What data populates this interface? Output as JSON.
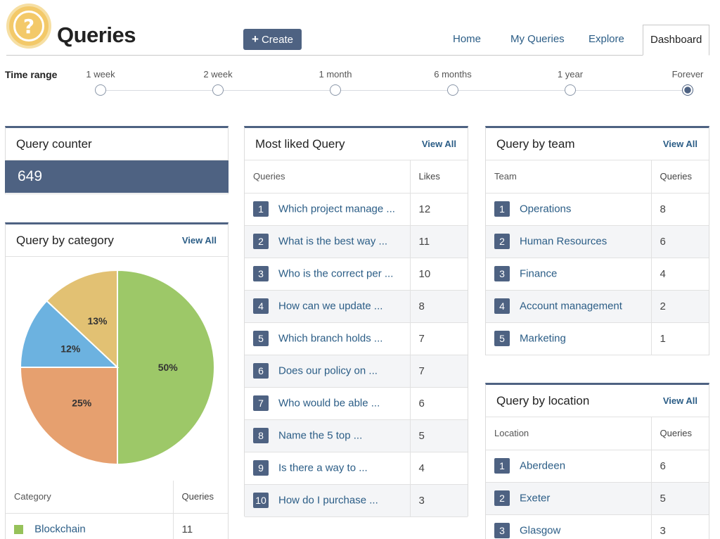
{
  "app": {
    "title": "Queries",
    "logo_icon": "question-mark-icon"
  },
  "toolbar": {
    "create_label": "Create"
  },
  "nav": {
    "tabs": [
      "Home",
      "My Queries",
      "Explore",
      "Dashboard"
    ],
    "active": "Dashboard"
  },
  "time_range": {
    "label": "Time range",
    "options": [
      "1 week",
      "2 week",
      "1 month",
      "6 months",
      "1 year",
      "Forever"
    ],
    "selected": "Forever"
  },
  "query_counter": {
    "title": "Query counter",
    "value": "649"
  },
  "category": {
    "title": "Query by category",
    "view_all": "View All",
    "columns": [
      "Category",
      "Queries"
    ],
    "rows": [
      {
        "name": "Blockchain",
        "queries": "11",
        "color": "#96c25a"
      }
    ]
  },
  "chart_data": {
    "type": "pie",
    "values": [
      50,
      25,
      12,
      13
    ],
    "labels": [
      "50%",
      "25%",
      "12%",
      "13%"
    ],
    "colors": [
      "#9dc868",
      "#e6a06f",
      "#6cb2e0",
      "#e2c173"
    ]
  },
  "liked": {
    "title": "Most liked Query",
    "view_all": "View All",
    "columns": [
      "Queries",
      "Likes"
    ],
    "rows": [
      {
        "rank": "1",
        "text": "Which project manage ...",
        "likes": "12"
      },
      {
        "rank": "2",
        "text": "What is the best way ...",
        "likes": "11"
      },
      {
        "rank": "3",
        "text": "Who is the correct per ...",
        "likes": "10"
      },
      {
        "rank": "4",
        "text": "How can we update ...",
        "likes": "8"
      },
      {
        "rank": "5",
        "text": "Which branch holds ...",
        "likes": "7"
      },
      {
        "rank": "6",
        "text": "Does our policy on ...",
        "likes": "7"
      },
      {
        "rank": "7",
        "text": "Who would be able ...",
        "likes": "6"
      },
      {
        "rank": "8",
        "text": "Name the 5 top ...",
        "likes": "5"
      },
      {
        "rank": "9",
        "text": "Is there a way to ...",
        "likes": "4"
      },
      {
        "rank": "10",
        "text": "How do I purchase ...",
        "likes": "3"
      }
    ]
  },
  "team": {
    "title": "Query by team",
    "view_all": "View All",
    "columns": [
      "Team",
      "Queries"
    ],
    "rows": [
      {
        "rank": "1",
        "name": "Operations",
        "queries": "8"
      },
      {
        "rank": "2",
        "name": "Human Resources",
        "queries": "6"
      },
      {
        "rank": "3",
        "name": "Finance",
        "queries": "4"
      },
      {
        "rank": "4",
        "name": "Account management",
        "queries": "2"
      },
      {
        "rank": "5",
        "name": "Marketing",
        "queries": "1"
      }
    ]
  },
  "location": {
    "title": "Query by location",
    "view_all": "View All",
    "columns": [
      "Location",
      "Queries"
    ],
    "rows": [
      {
        "rank": "1",
        "name": "Aberdeen",
        "queries": "6"
      },
      {
        "rank": "2",
        "name": "Exeter",
        "queries": "5"
      },
      {
        "rank": "3",
        "name": "Glasgow",
        "queries": "3"
      }
    ]
  }
}
